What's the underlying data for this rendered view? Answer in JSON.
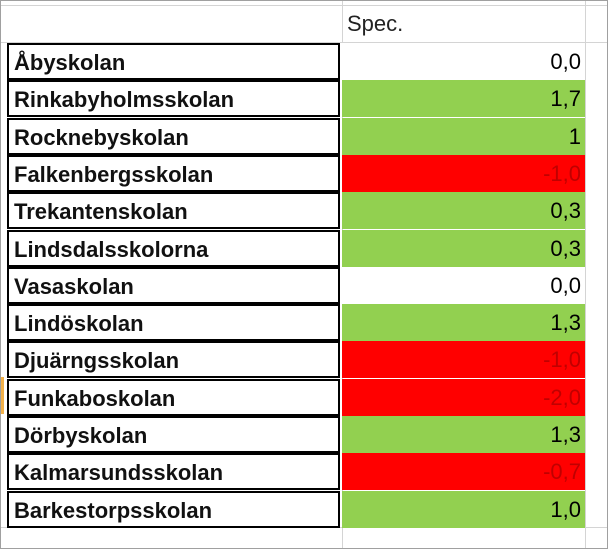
{
  "header": {
    "column_label": "Spec."
  },
  "rows": [
    {
      "name": "Åbyskolan",
      "value": "0,0",
      "status": "zero"
    },
    {
      "name": "Rinkabyholmsskolan",
      "value": "1,7",
      "status": "pos"
    },
    {
      "name": "Rocknebyskolan",
      "value": "1",
      "status": "pos"
    },
    {
      "name": "Falkenbergsskolan",
      "value": "-1,0",
      "status": "neg"
    },
    {
      "name": "Trekantenskolan",
      "value": "0,3",
      "status": "pos"
    },
    {
      "name": "Lindsdalsskolorna",
      "value": "0,3",
      "status": "pos"
    },
    {
      "name": "Vasaskolan",
      "value": "0,0",
      "status": "zero"
    },
    {
      "name": "Lindöskolan",
      "value": "1,3",
      "status": "pos"
    },
    {
      "name": "Djuärngsskolan",
      "value": "-1,0",
      "status": "neg"
    },
    {
      "name": "Funkaboskolan",
      "value": "-2,0",
      "status": "neg"
    },
    {
      "name": "Dörbyskolan",
      "value": "1,3",
      "status": "pos"
    },
    {
      "name": "Kalmarsundsskolan",
      "value": "-0,7",
      "status": "neg"
    },
    {
      "name": "Barkestorpsskolan",
      "value": "1,0",
      "status": "pos"
    }
  ],
  "colors": {
    "positive": "#92d050",
    "negative": "#ff0000",
    "negative_text": "#c00000"
  }
}
